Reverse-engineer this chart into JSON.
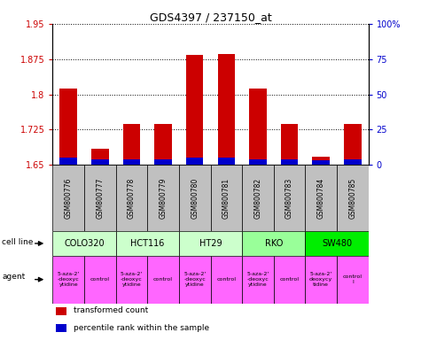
{
  "title": "GDS4397 / 237150_at",
  "samples": [
    "GSM800776",
    "GSM800777",
    "GSM800778",
    "GSM800779",
    "GSM800780",
    "GSM800781",
    "GSM800782",
    "GSM800783",
    "GSM800784",
    "GSM800785"
  ],
  "transformed_counts": [
    1.813,
    1.685,
    1.737,
    1.737,
    1.884,
    1.886,
    1.813,
    1.737,
    1.668,
    1.737
  ],
  "percentile_ranks": [
    5,
    4,
    4,
    4,
    5,
    5,
    4,
    4,
    3,
    4
  ],
  "ylim_left": [
    1.65,
    1.95
  ],
  "ylim_right": [
    0,
    100
  ],
  "yticks_left": [
    1.65,
    1.725,
    1.8,
    1.875,
    1.95
  ],
  "yticks_right": [
    0,
    25,
    50,
    75,
    100
  ],
  "ytick_labels_left": [
    "1.65",
    "1.725",
    "1.8",
    "1.875",
    "1.95"
  ],
  "ytick_labels_right": [
    "0",
    "25",
    "50",
    "75",
    "100%"
  ],
  "bar_color_red": "#cc0000",
  "bar_color_blue": "#0000cc",
  "bar_width": 0.55,
  "cell_lines": [
    {
      "name": "COLO320",
      "start": 0,
      "end": 2,
      "color": "#ccffcc"
    },
    {
      "name": "HCT116",
      "start": 2,
      "end": 4,
      "color": "#ccffcc"
    },
    {
      "name": "HT29",
      "start": 4,
      "end": 6,
      "color": "#ccffcc"
    },
    {
      "name": "RKO",
      "start": 6,
      "end": 8,
      "color": "#99ff99"
    },
    {
      "name": "SW480",
      "start": 8,
      "end": 10,
      "color": "#00ee00"
    }
  ],
  "agents": [
    {
      "name": "5-aza-2'\n-deoxyc\nytidine",
      "start": 0,
      "end": 1,
      "color": "#ff66ff"
    },
    {
      "name": "control",
      "start": 1,
      "end": 2,
      "color": "#ff66ff"
    },
    {
      "name": "5-aza-2'\n-deoxyc\nytidine",
      "start": 2,
      "end": 3,
      "color": "#ff66ff"
    },
    {
      "name": "control",
      "start": 3,
      "end": 4,
      "color": "#ff66ff"
    },
    {
      "name": "5-aza-2'\n-deoxyc\nytidine",
      "start": 4,
      "end": 5,
      "color": "#ff66ff"
    },
    {
      "name": "control",
      "start": 5,
      "end": 6,
      "color": "#ff66ff"
    },
    {
      "name": "5-aza-2'\n-deoxyc\nytidine",
      "start": 6,
      "end": 7,
      "color": "#ff66ff"
    },
    {
      "name": "control",
      "start": 7,
      "end": 8,
      "color": "#ff66ff"
    },
    {
      "name": "5-aza-2'\ndeoxycy\ntidine",
      "start": 8,
      "end": 9,
      "color": "#ff66ff"
    },
    {
      "name": "control\nl",
      "start": 9,
      "end": 10,
      "color": "#ff66ff"
    }
  ],
  "legend_items": [
    {
      "label": "transformed count",
      "color": "#cc0000"
    },
    {
      "label": "percentile rank within the sample",
      "color": "#0000cc"
    }
  ],
  "plot_bg": "#ffffff",
  "left_axis_color": "#cc0000",
  "right_axis_color": "#0000cc",
  "gsm_bg": "#c0c0c0"
}
